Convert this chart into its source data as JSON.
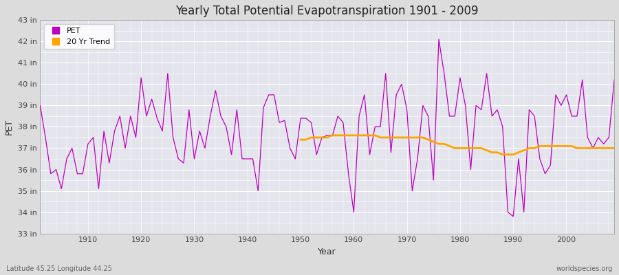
{
  "title": "Yearly Total Potential Evapotranspiration 1901 - 2009",
  "xlabel": "Year",
  "ylabel": "PET",
  "subtitle_left": "Latitude 45.25 Longitude 44.25",
  "subtitle_right": "worldspecies.org",
  "ylim": [
    33,
    43
  ],
  "yticks": [
    33,
    34,
    35,
    36,
    37,
    38,
    39,
    40,
    41,
    42,
    43
  ],
  "ytick_labels": [
    "33 in",
    "34 in",
    "35 in",
    "36 in",
    "37 in",
    "38 in",
    "39 in",
    "40 in",
    "41 in",
    "42 in",
    "43 in"
  ],
  "xlim": [
    1901,
    2009
  ],
  "xticks": [
    1910,
    1920,
    1930,
    1940,
    1950,
    1960,
    1970,
    1980,
    1990,
    2000
  ],
  "pet_color": "#BB00BB",
  "trend_color": "#FFA500",
  "background_color": "#E8E8E8",
  "plot_bg_color": "#E0E0E8",
  "grid_color": "#FFFFFF",
  "pet_data": {
    "years": [
      1901,
      1902,
      1903,
      1904,
      1905,
      1906,
      1907,
      1908,
      1909,
      1910,
      1911,
      1912,
      1913,
      1914,
      1915,
      1916,
      1917,
      1918,
      1919,
      1920,
      1921,
      1922,
      1923,
      1924,
      1925,
      1926,
      1927,
      1928,
      1929,
      1930,
      1931,
      1932,
      1933,
      1934,
      1935,
      1936,
      1937,
      1938,
      1939,
      1940,
      1941,
      1942,
      1943,
      1944,
      1945,
      1946,
      1947,
      1948,
      1949,
      1950,
      1951,
      1952,
      1953,
      1954,
      1955,
      1956,
      1957,
      1958,
      1959,
      1960,
      1961,
      1962,
      1963,
      1964,
      1965,
      1966,
      1967,
      1968,
      1969,
      1970,
      1971,
      1972,
      1973,
      1974,
      1975,
      1976,
      1977,
      1978,
      1979,
      1980,
      1981,
      1982,
      1983,
      1984,
      1985,
      1986,
      1987,
      1988,
      1989,
      1990,
      1991,
      1992,
      1993,
      1994,
      1995,
      1996,
      1997,
      1998,
      1999,
      2000,
      2001,
      2002,
      2003,
      2004,
      2005,
      2006,
      2007,
      2008,
      2009
    ],
    "values": [
      39.0,
      37.5,
      35.8,
      36.0,
      35.1,
      36.5,
      37.0,
      35.8,
      35.8,
      37.2,
      37.5,
      35.1,
      37.8,
      36.3,
      37.8,
      38.5,
      37.0,
      38.5,
      37.5,
      40.3,
      38.5,
      39.3,
      38.4,
      37.8,
      40.5,
      37.5,
      36.5,
      36.3,
      38.8,
      36.5,
      37.8,
      37.0,
      38.5,
      39.7,
      38.5,
      38.0,
      36.7,
      38.8,
      36.5,
      36.5,
      36.5,
      35.0,
      38.9,
      39.5,
      39.5,
      38.2,
      38.3,
      37.0,
      36.5,
      38.4,
      38.4,
      38.2,
      36.7,
      37.5,
      37.6,
      37.6,
      38.5,
      38.2,
      35.8,
      34.0,
      38.5,
      39.5,
      36.7,
      38.0,
      38.0,
      40.5,
      36.8,
      39.5,
      40.0,
      38.8,
      35.0,
      36.5,
      39.0,
      38.5,
      35.5,
      42.1,
      40.5,
      38.5,
      38.5,
      40.3,
      39.0,
      36.0,
      39.0,
      38.8,
      40.5,
      38.5,
      38.8,
      38.0,
      34.0,
      33.8,
      36.5,
      34.0,
      38.8,
      38.5,
      36.5,
      35.8,
      36.2,
      39.5,
      39.0,
      39.5,
      38.5,
      38.5,
      40.2,
      37.5,
      37.0,
      37.5,
      37.2,
      37.5,
      40.2
    ]
  },
  "trend_data": {
    "years": [
      1950,
      1951,
      1952,
      1953,
      1954,
      1955,
      1956,
      1957,
      1958,
      1959,
      1960,
      1961,
      1962,
      1963,
      1964,
      1965,
      1966,
      1967,
      1968,
      1969,
      1970,
      1971,
      1972,
      1973,
      1974,
      1975,
      1976,
      1977,
      1978,
      1979,
      1980,
      1981,
      1982,
      1983,
      1984,
      1985,
      1986,
      1987,
      1988,
      1989,
      1990,
      1991,
      1992,
      1993,
      1994,
      1995,
      1996,
      1997,
      1998,
      1999,
      2000,
      2001,
      2002,
      2003,
      2004,
      2005,
      2006,
      2007,
      2008,
      2009
    ],
    "values": [
      37.4,
      37.4,
      37.5,
      37.5,
      37.5,
      37.5,
      37.6,
      37.6,
      37.6,
      37.6,
      37.6,
      37.6,
      37.6,
      37.6,
      37.6,
      37.5,
      37.5,
      37.5,
      37.5,
      37.5,
      37.5,
      37.5,
      37.5,
      37.5,
      37.4,
      37.3,
      37.2,
      37.2,
      37.1,
      37.0,
      37.0,
      37.0,
      37.0,
      37.0,
      37.0,
      36.9,
      36.8,
      36.8,
      36.7,
      36.7,
      36.7,
      36.8,
      36.9,
      37.0,
      37.0,
      37.1,
      37.1,
      37.1,
      37.1,
      37.1,
      37.1,
      37.1,
      37.0,
      37.0,
      37.0,
      37.0,
      37.0,
      37.0,
      37.0,
      37.0
    ]
  },
  "legend_pet": "PET",
  "legend_trend": "20 Yr Trend",
  "fig_width": 9.0,
  "fig_height": 4.0,
  "dpi": 100
}
